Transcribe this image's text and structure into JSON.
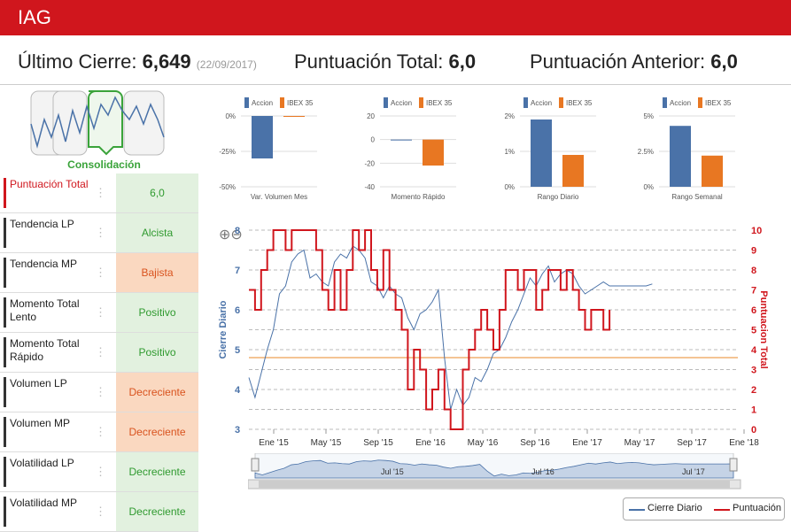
{
  "header": {
    "title": "IAG"
  },
  "summary": {
    "last_close_label": "Último Cierre:",
    "last_close_value": "6,649",
    "last_close_date": "(22/09/2017)",
    "total_score_label": "Puntuación Total:",
    "total_score_value": "6,0",
    "prev_score_label": "Puntuación Anterior:",
    "prev_score_value": "6,0"
  },
  "stage": {
    "label": "Consolidación"
  },
  "rows": [
    {
      "label": "Puntuación Total",
      "value": "6,0",
      "status": "good"
    },
    {
      "label": "Tendencia LP",
      "value": "Alcista",
      "status": "good"
    },
    {
      "label": "Tendencia MP",
      "value": "Bajista",
      "status": "bad"
    },
    {
      "label": "Momento Total Lento",
      "value": "Positivo",
      "status": "good"
    },
    {
      "label": "Momento Total Rápido",
      "value": "Positivo",
      "status": "good"
    },
    {
      "label": "Volumen LP",
      "value": "Decreciente",
      "status": "bad"
    },
    {
      "label": "Volumen MP",
      "value": "Decreciente",
      "status": "bad"
    },
    {
      "label": "Volatilidad LP",
      "value": "Decreciente",
      "status": "good"
    },
    {
      "label": "Volatilidad MP",
      "value": "Decreciente",
      "status": "good"
    }
  ],
  "info_icon": "info-icon",
  "colors": {
    "accent": "#d0161d",
    "accion": "#4a72a8",
    "ibex": "#e87722",
    "good_bg": "#e2f1df",
    "bad_bg": "#fad8c0"
  },
  "chart_data": [
    {
      "type": "bar",
      "title": "Var. Volumen Mes",
      "series": [
        {
          "name": "Accion",
          "values": [
            -30
          ]
        },
        {
          "name": "IBEX 35",
          "values": [
            0
          ]
        }
      ],
      "ticks": [
        "0%",
        "-25%",
        "-50%"
      ],
      "ylim": [
        -50,
        0
      ]
    },
    {
      "type": "bar",
      "title": "Momento Rápido",
      "series": [
        {
          "name": "Accion",
          "values": [
            0
          ]
        },
        {
          "name": "IBEX 35",
          "values": [
            -22
          ]
        }
      ],
      "ticks": [
        "20",
        "0",
        "-20",
        "-40"
      ],
      "ylim": [
        -40,
        20
      ]
    },
    {
      "type": "bar",
      "title": "Rango Diario",
      "series": [
        {
          "name": "Accion",
          "values": [
            1.9
          ]
        },
        {
          "name": "IBEX 35",
          "values": [
            0.9
          ]
        }
      ],
      "ticks": [
        "2%",
        "1%",
        "0%"
      ],
      "ylim": [
        0,
        2
      ]
    },
    {
      "type": "bar",
      "title": "Rango Semanal",
      "series": [
        {
          "name": "Accion",
          "values": [
            4.3
          ]
        },
        {
          "name": "IBEX 35",
          "values": [
            2.2
          ]
        }
      ],
      "ticks": [
        "5%",
        "2.5%",
        "0%"
      ],
      "ylim": [
        0,
        5
      ]
    },
    {
      "type": "line",
      "title": "",
      "ylabel": "Cierre Diario",
      "y2label": "Puntuacion Total",
      "ylim": [
        3,
        8
      ],
      "y2lim": [
        0,
        10
      ],
      "yticks": [
        "3",
        "4",
        "5",
        "6",
        "7",
        "8"
      ],
      "y2ticks": [
        "0",
        "1",
        "2",
        "3",
        "4",
        "5",
        "6",
        "7",
        "8",
        "9",
        "10"
      ],
      "xticks": [
        "Ene '15",
        "May '15",
        "Sep '15",
        "Ene '16",
        "May '16",
        "Sep '16",
        "Ene '17",
        "May '17",
        "Sep '17",
        "Ene '18"
      ],
      "reference_line": 4.8,
      "series": [
        {
          "name": "Cierre Diario",
          "x": [
            0,
            2,
            4,
            6,
            8,
            10,
            12,
            14,
            16,
            18,
            20,
            22,
            24,
            26,
            28,
            30,
            32,
            34,
            36,
            38,
            40,
            42,
            44,
            46,
            48,
            50,
            52,
            54,
            56,
            58,
            60,
            62,
            64,
            66,
            68,
            70,
            72,
            74,
            76,
            78,
            80,
            82,
            84,
            86,
            88,
            90,
            92,
            94,
            96,
            98,
            100,
            102,
            104,
            106,
            108,
            110,
            112,
            114,
            116,
            118,
            120,
            122,
            124,
            126,
            128,
            130,
            132
          ],
          "values": [
            4.3,
            3.8,
            4.4,
            5.0,
            5.5,
            6.4,
            6.6,
            7.2,
            7.4,
            7.5,
            6.8,
            6.9,
            6.7,
            6.6,
            7.2,
            7.4,
            7.3,
            7.6,
            7.5,
            7.3,
            6.7,
            6.6,
            6.3,
            6.6,
            6.4,
            6.3,
            5.8,
            5.5,
            5.9,
            6.0,
            6.2,
            6.5,
            4.8,
            3.5,
            4.0,
            3.6,
            3.8,
            4.3,
            4.2,
            4.5,
            4.9,
            5.0,
            5.3,
            5.7,
            6.0,
            6.4,
            6.8,
            6.6,
            6.9,
            7.1,
            6.7,
            6.9,
            7.0,
            6.9,
            6.6,
            6.4,
            6.5,
            6.6,
            6.7,
            6.6,
            6.6,
            6.6,
            6.6,
            6.6,
            6.6,
            6.6,
            6.649
          ]
        },
        {
          "name": "Puntuación",
          "x": [
            0,
            2,
            4,
            6,
            8,
            10,
            12,
            14,
            16,
            18,
            20,
            22,
            24,
            26,
            28,
            30,
            32,
            34,
            36,
            38,
            40,
            42,
            44,
            46,
            48,
            50,
            52,
            54,
            56,
            58,
            60,
            62,
            64,
            66,
            68,
            70,
            72,
            74,
            76,
            78,
            80,
            82,
            84,
            86,
            88,
            90,
            92,
            94,
            96,
            98,
            100,
            102,
            104,
            106,
            108,
            110,
            112,
            114,
            116,
            118
          ],
          "values": [
            7,
            6,
            8,
            9,
            10,
            10,
            9,
            10,
            10,
            10,
            10,
            9,
            7,
            6,
            8,
            6,
            8,
            10,
            9,
            10,
            8,
            7,
            9,
            7,
            6,
            5,
            2,
            4,
            3,
            1,
            2,
            3,
            1,
            0,
            0,
            3,
            4,
            5,
            6,
            5,
            4,
            6,
            8,
            8,
            7,
            8,
            8,
            6,
            7,
            8,
            8,
            7,
            8,
            7,
            6,
            5,
            6,
            6,
            5,
            6
          ]
        }
      ],
      "navigator_labels": [
        "Jul '15",
        "Jul '16",
        "Jul '17"
      ],
      "legend": [
        "Cierre Diario",
        "Puntuación"
      ]
    }
  ]
}
